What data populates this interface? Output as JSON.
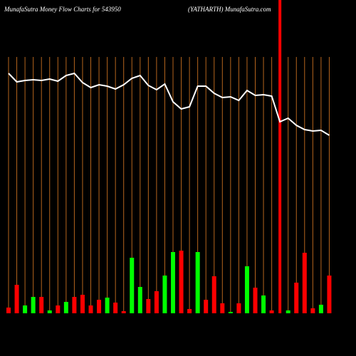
{
  "chart_data": {
    "type": "money-flow",
    "title": "MunafaSutra  Money Flow  Charts for 543950",
    "subtitle": "(YATHARTH) MunafaSutra.com",
    "values": [
      8,
      40,
      11,
      23,
      23,
      4,
      11,
      16,
      23,
      26,
      11,
      19,
      22,
      15,
      3,
      78,
      37,
      20,
      31,
      53,
      86,
      88,
      6,
      86,
      19,
      52,
      14,
      2,
      14,
      66,
      36,
      25,
      4,
      null,
      4,
      43,
      85,
      7,
      12,
      53
    ],
    "colors": [
      "#ff0000",
      "#ff0000",
      "#00ff00",
      "#00ff00",
      "#ff0000",
      "#00ff00",
      "#ff0000",
      "#00ff00",
      "#ff0000",
      "#ff0000",
      "#ff0000",
      "#ff0000",
      "#00ff00",
      "#ff0000",
      "#ff0000",
      "#00ff00",
      "#00ff00",
      "#ff0000",
      "#ff0000",
      "#00ff00",
      "#00ff00",
      "#ff0000",
      "#ff0000",
      "#00ff00",
      "#ff0000",
      "#ff0000",
      "#ff0000",
      "#00ff00",
      "#ff0000",
      "#00ff00",
      "#ff0000",
      "#00ff00",
      "#ff0000",
      null,
      "#00ff00",
      "#ff0000",
      "#ff0000",
      "#ff0000",
      "#00ff00",
      "#ff0000"
    ],
    "ylim": [
      0,
      100
    ],
    "line_values": [
      337,
      325,
      327,
      328,
      327,
      329,
      326,
      334,
      337,
      324,
      317,
      321,
      319,
      315,
      321,
      330,
      334,
      320,
      314,
      322,
      297,
      287,
      290,
      319,
      319,
      309,
      303,
      304,
      299,
      313,
      306,
      307,
      305,
      269,
      274,
      264,
      258,
      256,
      257,
      250
    ],
    "line_color": "#ffffff",
    "y2lim": [
      0,
      350
    ],
    "grid_color": "#b5651d",
    "highlight_index": 33,
    "highlight_color": "#ff0000"
  }
}
